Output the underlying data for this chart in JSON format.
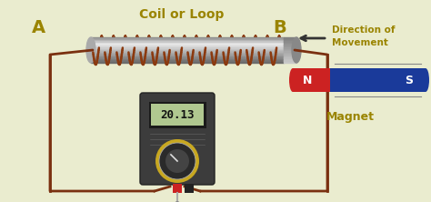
{
  "bg_color": "#eaeccf",
  "label_A": "A",
  "label_B": "B",
  "label_coil": "Coil or Loop",
  "label_direction": "Direction of\nMovement",
  "label_magnet": "Magnet",
  "label_N": "N",
  "label_S": "S",
  "label_reading": "20.13",
  "gold_color": "#9a8400",
  "magnet_N_color": "#cc2222",
  "magnet_S_color": "#1a3a9a",
  "wire_color": "#7a3010",
  "coil_color": "#8b3a10",
  "rod_light": "#c8c8c8",
  "rod_mid": "#909090",
  "rod_dark": "#606060",
  "multimeter_body": "#3a3a3a",
  "multimeter_screen_bg": "#c8d4a0",
  "display_text_color": "#111111"
}
